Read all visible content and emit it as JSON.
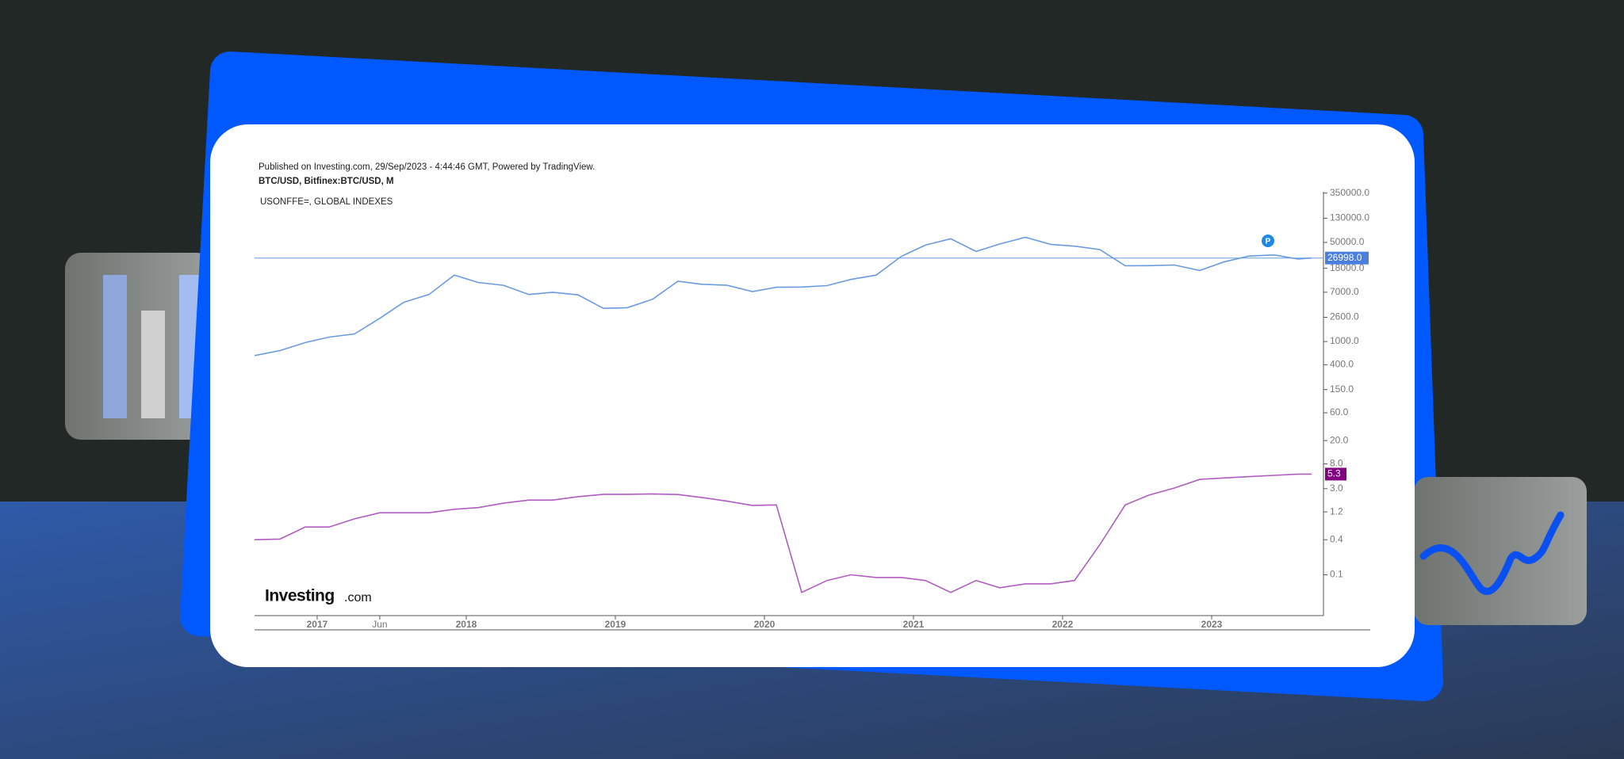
{
  "published": "Published on Investing.com, 29/Sep/2023 - 4:44:46 GMT, Powered by TradingView.",
  "symbol": "BTC/USD, Bitfinex:BTC/USD, M",
  "logo": [
    "Investing",
    ".com"
  ],
  "badge": "P",
  "chart_data": {
    "type": "line",
    "log_scale": true,
    "grid": false,
    "x": [
      2016.58,
      2016.75,
      2016.92,
      2017.08,
      2017.25,
      2017.42,
      2017.58,
      2017.75,
      2017.92,
      2018.08,
      2018.25,
      2018.42,
      2018.58,
      2018.75,
      2018.92,
      2019.08,
      2019.25,
      2019.42,
      2019.58,
      2019.75,
      2019.92,
      2020.08,
      2020.25,
      2020.42,
      2020.58,
      2020.75,
      2020.92,
      2021.08,
      2021.25,
      2021.42,
      2021.58,
      2021.75,
      2021.92,
      2022.08,
      2022.25,
      2022.42,
      2022.58,
      2022.75,
      2022.92,
      2023.08,
      2023.25,
      2023.42,
      2023.58,
      2023.67
    ],
    "xlim": [
      2016.58,
      2023.75
    ],
    "xticks": [
      2017,
      {
        "value": 2017.42,
        "label": "Jun"
      },
      2018,
      2019,
      2020,
      2021,
      2022,
      2023
    ],
    "ylim": [
      0.02,
      370000
    ],
    "yticks": [
      {
        "value": 350000,
        "label": "350000.0"
      },
      {
        "value": 130000,
        "label": "130000.0"
      },
      {
        "value": 50000,
        "label": "50000.0"
      },
      {
        "value": 18000,
        "label": "18000.0"
      },
      {
        "value": 7000,
        "label": "7000.0"
      },
      {
        "value": 2600,
        "label": "2600.0"
      },
      {
        "value": 1000,
        "label": "1000.0"
      },
      {
        "value": 400,
        "label": "400.0"
      },
      {
        "value": 150,
        "label": "150.0"
      },
      {
        "value": 60,
        "label": "60.0"
      },
      {
        "value": 20,
        "label": "20.0"
      },
      {
        "value": 8,
        "label": "8.0"
      },
      {
        "value": 3,
        "label": "3.0"
      },
      1.2,
      0.4,
      0.1
    ],
    "series": [
      {
        "name": "BTC/USD, Bitfinex:BTC/USD, M",
        "color": "#6a9be0",
        "label_color": "#4a7fe0",
        "values": [
          575,
          700,
          960,
          1190,
          1350,
          2500,
          4700,
          6400,
          13800,
          10300,
          9200,
          6400,
          7000,
          6300,
          3700,
          3800,
          5300,
          10800,
          9600,
          9200,
          7200,
          8500,
          8600,
          9100,
          11600,
          13800,
          29000,
          45000,
          57700,
          35000,
          47100,
          61300,
          46300,
          43200,
          37700,
          19900,
          20000,
          20500,
          16500,
          23100,
          29200,
          30500,
          26000,
          26998
        ],
        "value_labels": [
          null,
          null,
          null,
          null,
          null,
          null,
          null,
          null,
          null,
          null,
          null,
          null,
          null,
          null,
          null,
          null,
          null,
          null,
          null,
          null,
          null,
          null,
          null,
          null,
          null,
          null,
          null,
          null,
          null,
          null,
          null,
          null,
          null,
          null,
          null,
          null,
          null,
          null,
          null,
          null,
          null,
          null,
          null,
          "26998.0"
        ]
      },
      {
        "name": "USONFFE=, GLOBAL INDEXES",
        "color": "#b05cc0",
        "label_color": "#800080",
        "values": [
          0.4,
          0.41,
          0.66,
          0.66,
          0.91,
          1.16,
          1.16,
          1.16,
          1.33,
          1.42,
          1.69,
          1.91,
          1.91,
          2.19,
          2.4,
          2.4,
          2.44,
          2.38,
          2.12,
          1.83,
          1.55,
          1.58,
          0.05,
          0.08,
          0.1,
          0.09,
          0.09,
          0.08,
          0.05,
          0.08,
          0.06,
          0.07,
          0.07,
          0.08,
          0.33,
          1.58,
          2.33,
          3.08,
          4.33,
          4.58,
          4.83,
          5.08,
          5.33,
          5.33
        ],
        "value_labels": [
          null,
          null,
          null,
          null,
          null,
          null,
          null,
          null,
          null,
          null,
          null,
          null,
          null,
          null,
          null,
          null,
          null,
          null,
          null,
          null,
          null,
          null,
          null,
          null,
          null,
          null,
          null,
          null,
          null,
          null,
          null,
          null,
          null,
          null,
          null,
          null,
          null,
          null,
          null,
          null,
          null,
          null,
          null,
          "5.3"
        ]
      }
    ]
  }
}
